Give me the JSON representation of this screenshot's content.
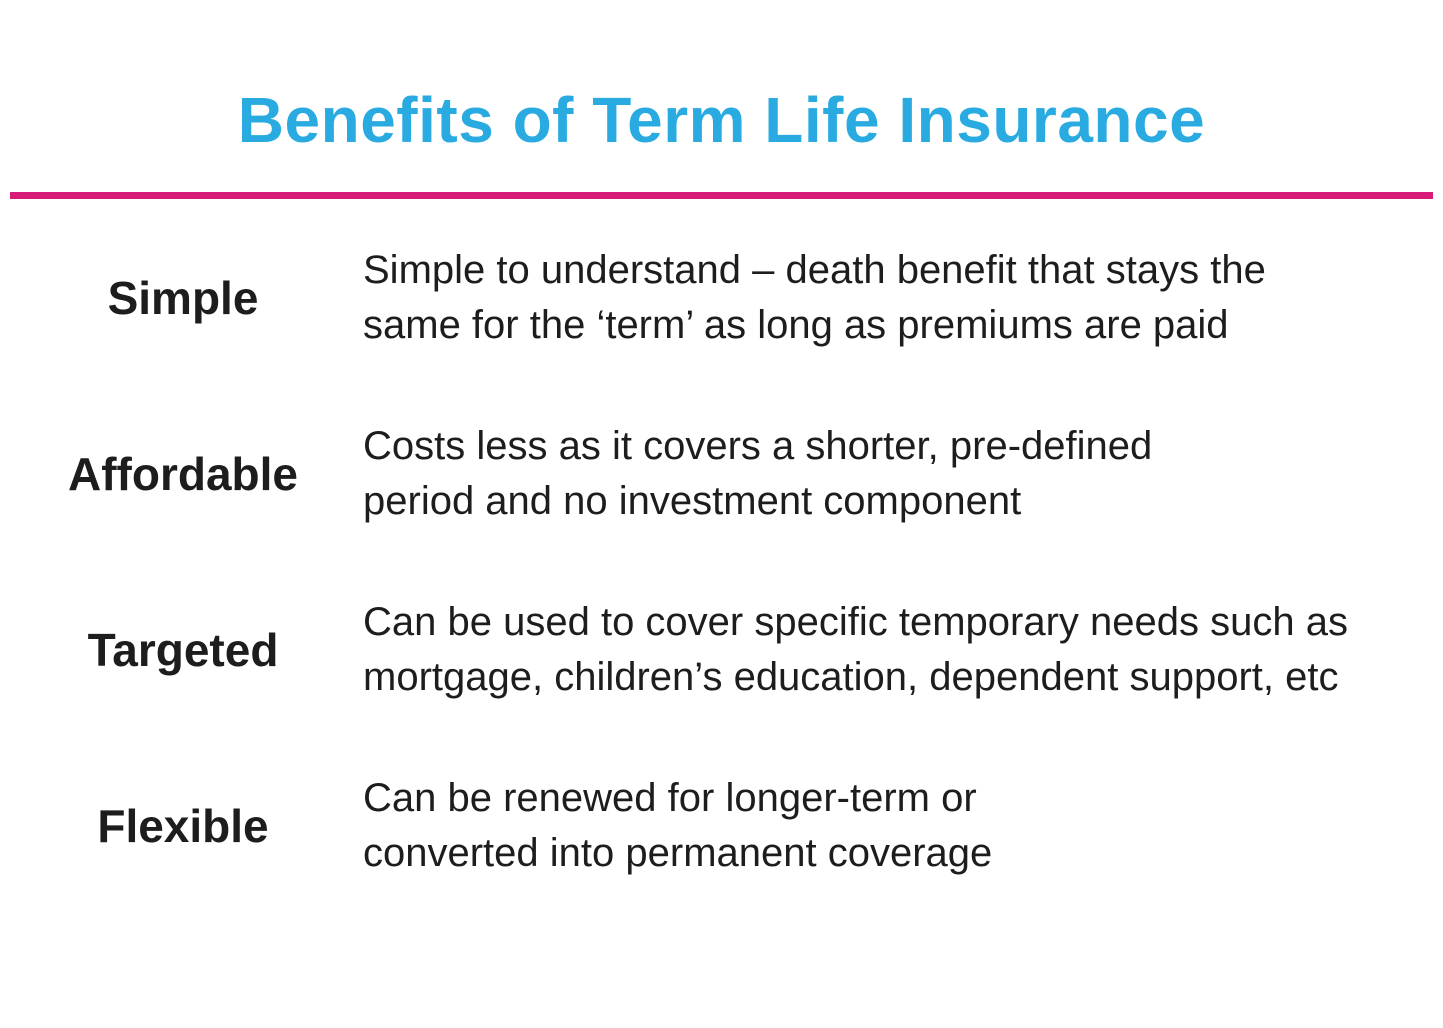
{
  "title": {
    "text": "Benefits of Term Life Insurance"
  },
  "colors": {
    "title_accent": "#29ABE2",
    "divider": "#D81B76",
    "body_text": "#1d1d1d",
    "background": "#FFFFFF"
  },
  "benefits": [
    {
      "label": "Simple",
      "lines": [
        "Simple to understand – death benefit that stays the",
        "same for the ‘term’ as long as premiums are paid"
      ]
    },
    {
      "label": "Affordable",
      "lines": [
        "Costs less as it covers a shorter, pre-defined",
        "period and no investment component"
      ]
    },
    {
      "label": "Targeted",
      "lines": [
        "Can be used to cover specific temporary needs such as",
        "mortgage, children’s education, dependent support, etc"
      ]
    },
    {
      "label": "Flexible",
      "lines": [
        "Can be renewed for longer-term or",
        "converted into permanent coverage"
      ]
    }
  ]
}
